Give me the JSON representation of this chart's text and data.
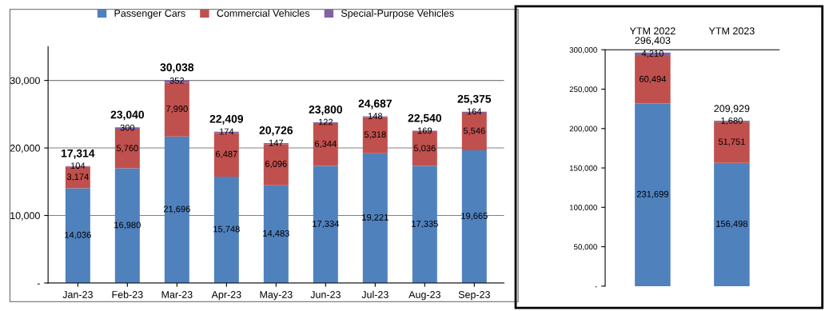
{
  "chart_data": [
    {
      "type": "bar",
      "stacked": true,
      "categories": [
        "Jan-23",
        "Feb-23",
        "Mar-23",
        "Apr-23",
        "May-23",
        "Jun-23",
        "Jul-23",
        "Aug-23",
        "Sep-23"
      ],
      "series": [
        {
          "name": "Passenger Cars",
          "color": "#4f81bd",
          "values": [
            14036,
            16980,
            21696,
            15748,
            14483,
            17334,
            19221,
            17335,
            19665
          ],
          "value_labels": [
            "14,036",
            "16,980",
            "21,696",
            "15,748",
            "14,483",
            "17,334",
            "19,221",
            "17,335",
            "19,665"
          ]
        },
        {
          "name": "Commercial Vehicles",
          "color": "#c0504d",
          "values": [
            3174,
            5760,
            7990,
            6487,
            6096,
            6344,
            5318,
            5036,
            5546
          ],
          "value_labels": [
            "3,174",
            "5,760",
            "7,990",
            "6,487",
            "6,096",
            "6,344",
            "5,318",
            "5,036",
            "5,546"
          ]
        },
        {
          "name": "Special-Purpose Vehicles",
          "color": "#8064a2",
          "values": [
            104,
            300,
            352,
            174,
            147,
            122,
            148,
            169,
            164
          ],
          "value_labels": [
            "104",
            "300",
            "352",
            "174",
            "147",
            "122",
            "148",
            "169",
            "164"
          ]
        }
      ],
      "totals": [
        "17,314",
        "23,040",
        "30,038",
        "22,409",
        "20,726",
        "23,800",
        "24,687",
        "22,540",
        "25,375"
      ],
      "ylim": [
        0,
        35000
      ],
      "yticks": [
        {
          "value": 0,
          "label": "-"
        },
        {
          "value": 10000,
          "label": "10,000"
        },
        {
          "value": 20000,
          "label": "20,000"
        },
        {
          "value": 30000,
          "label": "30,000"
        }
      ],
      "grid": "y",
      "legend": "top"
    },
    {
      "type": "bar",
      "stacked": true,
      "categories": [
        "YTM 2022",
        "YTM 2023"
      ],
      "series": [
        {
          "color": "#4f81bd",
          "values": [
            231699,
            156498
          ],
          "value_labels": [
            "231,699",
            "156,498"
          ]
        },
        {
          "color": "#c0504d",
          "values": [
            60494,
            51751
          ],
          "value_labels": [
            "60,494",
            "51,751"
          ]
        },
        {
          "color": "#8064a2",
          "values": [
            4210,
            1680
          ],
          "value_labels": [
            "4,210",
            "1,680"
          ]
        }
      ],
      "totals": [
        "296,403",
        "209,929"
      ],
      "ylim": [
        0,
        300000
      ],
      "yticks": [
        {
          "value": 0,
          "label": "-"
        },
        {
          "value": 50000,
          "label": "50,000"
        },
        {
          "value": 100000,
          "label": "100,000"
        },
        {
          "value": 150000,
          "label": "150,000"
        },
        {
          "value": 200000,
          "label": "200,000"
        },
        {
          "value": 250000,
          "label": "250,000"
        },
        {
          "value": 300000,
          "label": "300,000"
        }
      ],
      "grid": false,
      "legend": false
    }
  ]
}
